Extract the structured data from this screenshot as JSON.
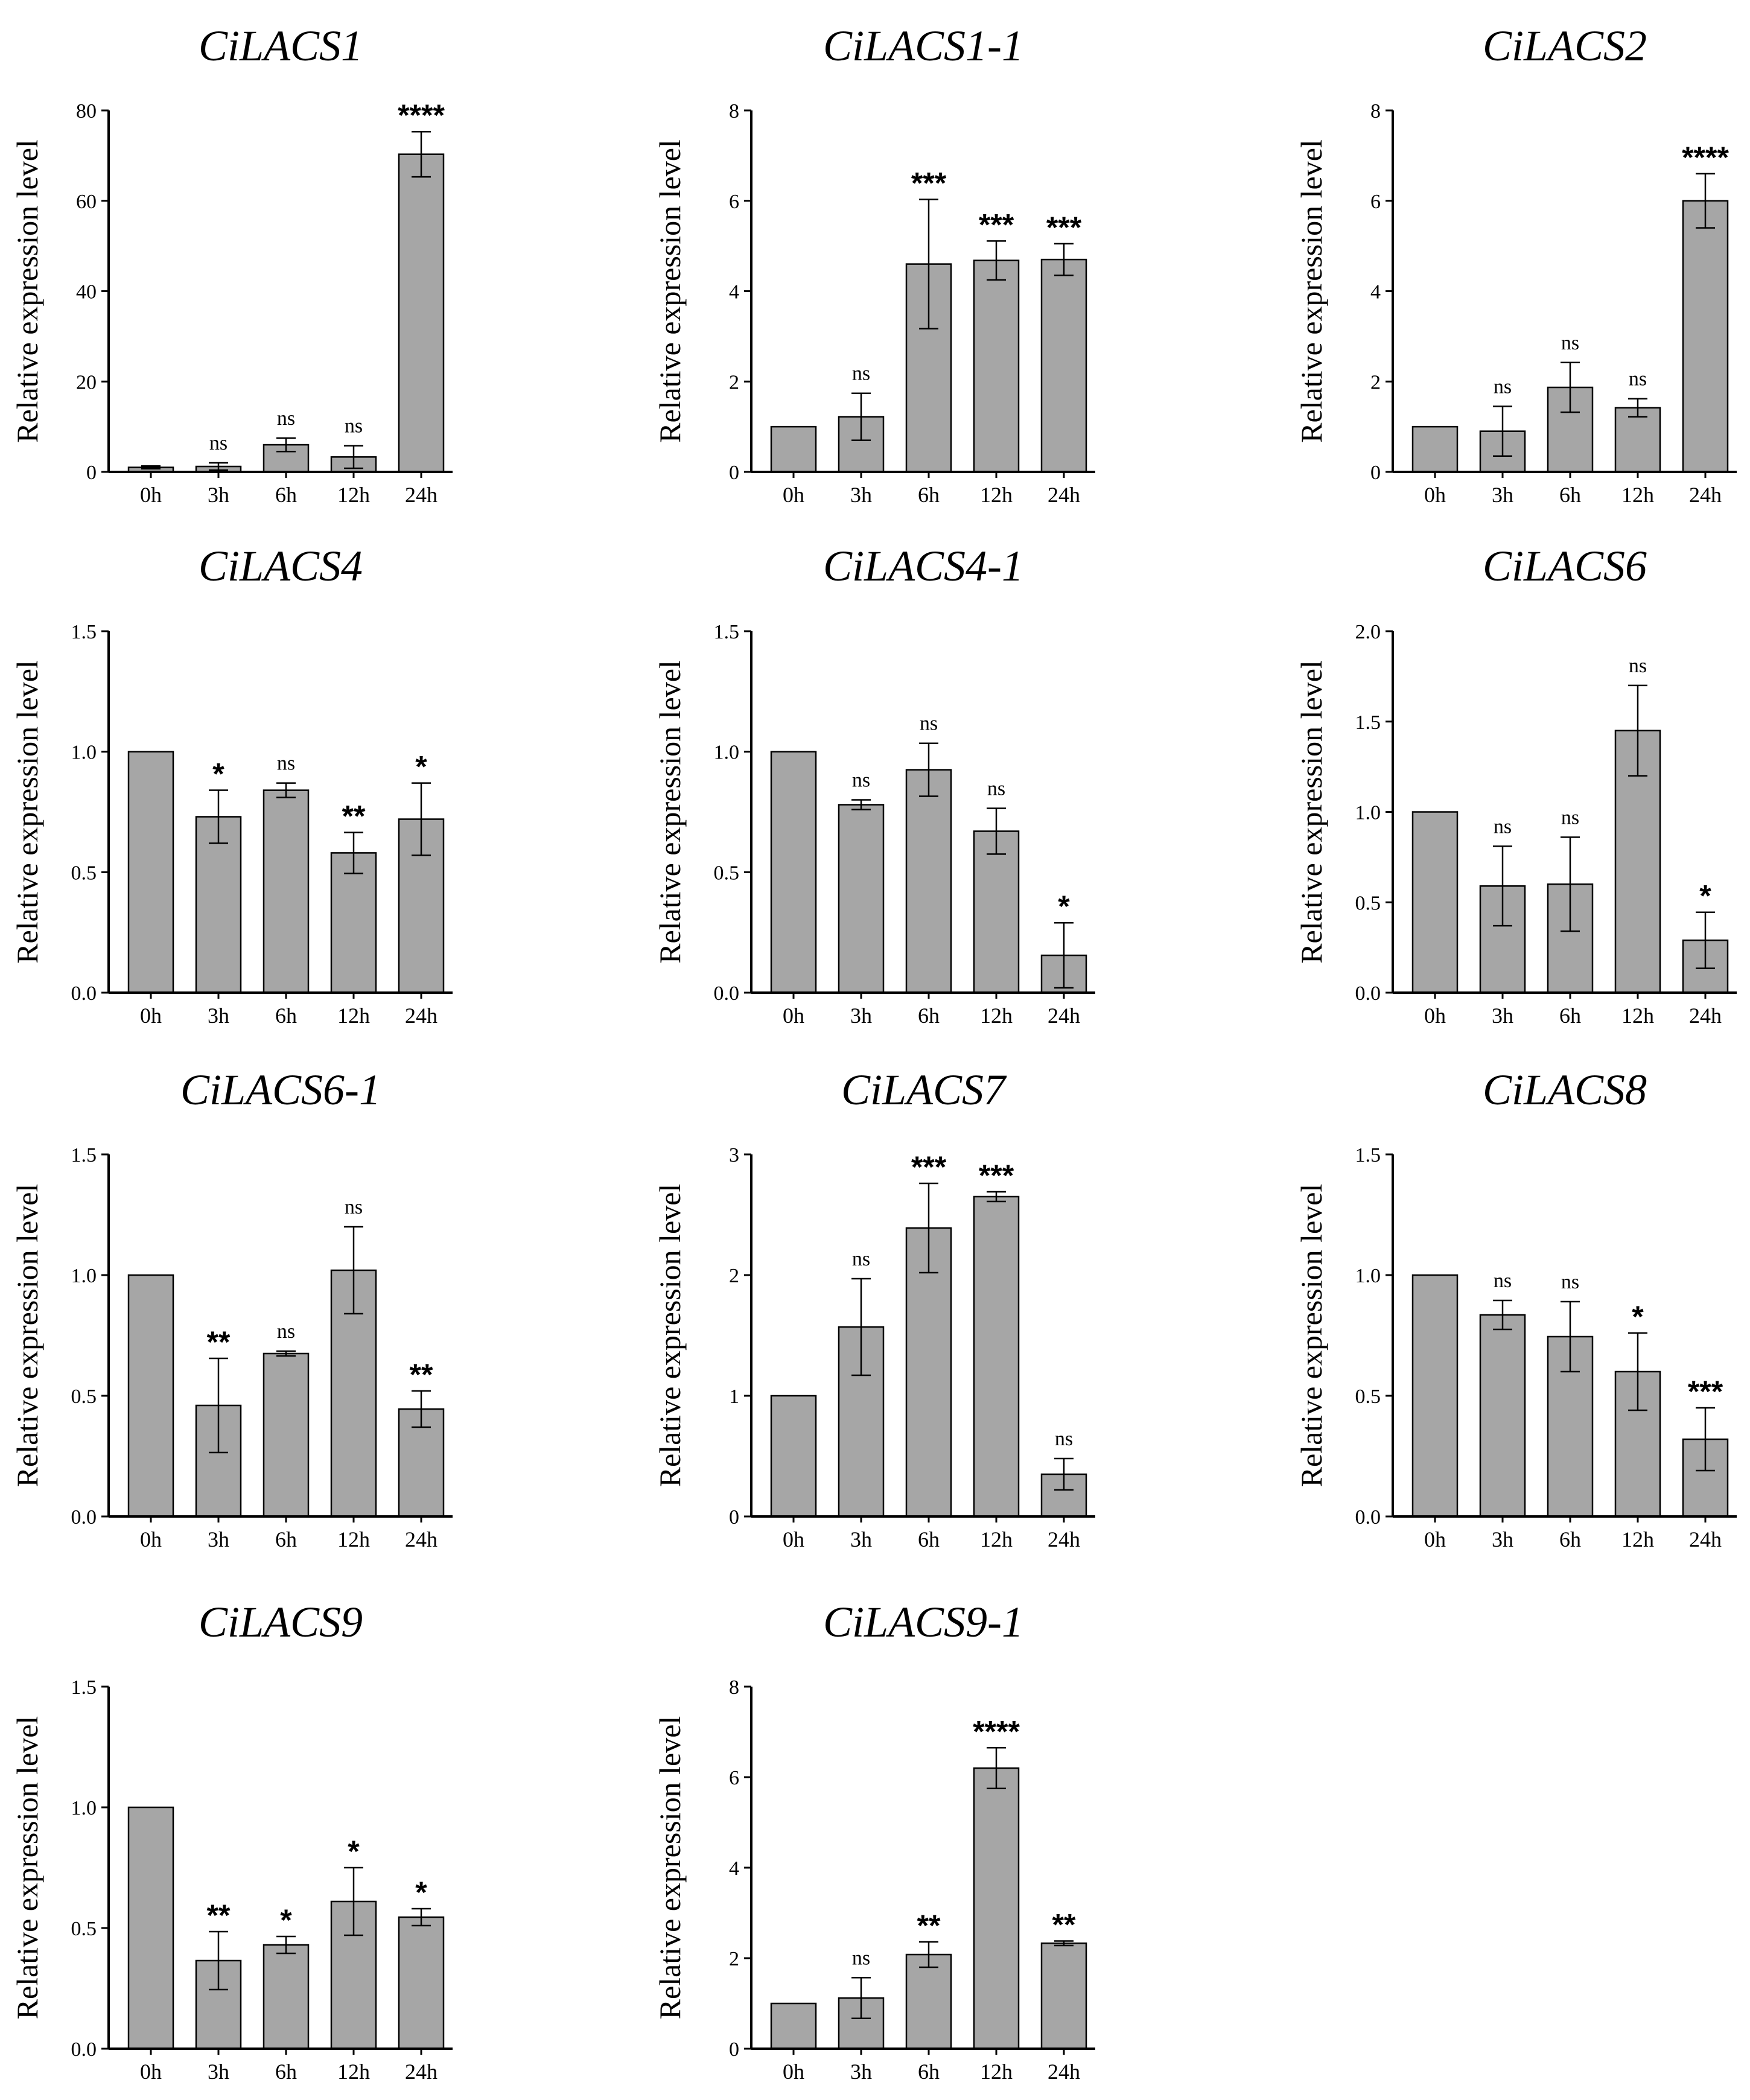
{
  "colors": {
    "bar_fill": "#a6a6a6",
    "stroke": "#000000",
    "background": "#ffffff"
  },
  "chart_data": [
    {
      "type": "bar",
      "title": "CiLACS1",
      "ylabel": "Relative expression level",
      "categories": [
        "0h",
        "3h",
        "6h",
        "12h",
        "24h"
      ],
      "ylim": [
        0,
        80
      ],
      "yticks": [
        "0",
        "20",
        "40",
        "60",
        "80"
      ],
      "values": [
        1.0,
        1.2,
        6.0,
        3.3,
        70.3
      ],
      "errors": [
        0.3,
        0.8,
        1.5,
        2.5,
        5.0
      ],
      "significance": [
        "",
        "ns",
        "ns",
        "ns",
        "****"
      ]
    },
    {
      "type": "bar",
      "title": "CiLACS1-1",
      "ylabel": "Relative expression level",
      "categories": [
        "0h",
        "3h",
        "6h",
        "12h",
        "24h"
      ],
      "ylim": [
        0,
        8
      ],
      "yticks": [
        "0",
        "2",
        "4",
        "6",
        "8"
      ],
      "values": [
        1.0,
        1.22,
        4.6,
        4.68,
        4.7
      ],
      "errors": [
        0,
        0.52,
        1.43,
        0.43,
        0.35
      ],
      "significance": [
        "",
        "ns",
        "***",
        "***",
        "***"
      ]
    },
    {
      "type": "bar",
      "title": "CiLACS2",
      "ylabel": "Relative expression level",
      "categories": [
        "0h",
        "3h",
        "6h",
        "12h",
        "24h"
      ],
      "ylim": [
        0,
        8
      ],
      "yticks": [
        "0",
        "2",
        "4",
        "6",
        "8"
      ],
      "values": [
        1.0,
        0.9,
        1.87,
        1.42,
        6.0
      ],
      "errors": [
        0,
        0.55,
        0.55,
        0.2,
        0.6
      ],
      "significance": [
        "",
        "ns",
        "ns",
        "ns",
        "****"
      ]
    },
    {
      "type": "bar",
      "title": "CiLACS4",
      "ylabel": "Relative expression level",
      "categories": [
        "0h",
        "3h",
        "6h",
        "12h",
        "24h"
      ],
      "ylim": [
        0,
        1.5
      ],
      "yticks": [
        "0.0",
        "0.5",
        "1.0",
        "1.5"
      ],
      "values": [
        1.0,
        0.73,
        0.84,
        0.58,
        0.72
      ],
      "errors": [
        0,
        0.11,
        0.03,
        0.085,
        0.15
      ],
      "significance": [
        "",
        "*",
        "ns",
        "**",
        "*"
      ]
    },
    {
      "type": "bar",
      "title": "CiLACS4-1",
      "ylabel": "Relative expression level",
      "categories": [
        "0h",
        "3h",
        "6h",
        "12h",
        "24h"
      ],
      "ylim": [
        0,
        1.5
      ],
      "yticks": [
        "0.0",
        "0.5",
        "1.0",
        "1.5"
      ],
      "values": [
        1.0,
        0.78,
        0.925,
        0.67,
        0.155
      ],
      "errors": [
        0,
        0.02,
        0.11,
        0.095,
        0.135
      ],
      "significance": [
        "",
        "ns",
        "ns",
        "ns",
        "*"
      ]
    },
    {
      "type": "bar",
      "title": "CiLACS6",
      "ylabel": "Relative expression level",
      "categories": [
        "0h",
        "3h",
        "6h",
        "12h",
        "24h"
      ],
      "ylim": [
        0,
        2.0
      ],
      "yticks": [
        "0.0",
        "0.5",
        "1.0",
        "1.5",
        "2.0"
      ],
      "values": [
        1.0,
        0.59,
        0.6,
        1.45,
        0.29
      ],
      "errors": [
        0,
        0.22,
        0.26,
        0.25,
        0.155
      ],
      "significance": [
        "",
        "ns",
        "ns",
        "ns",
        "*"
      ]
    },
    {
      "type": "bar",
      "title": "CiLACS6-1",
      "ylabel": "Relative expression level",
      "categories": [
        "0h",
        "3h",
        "6h",
        "12h",
        "24h"
      ],
      "ylim": [
        0,
        1.5
      ],
      "yticks": [
        "0.0",
        "0.5",
        "1.0",
        "1.5"
      ],
      "values": [
        1.0,
        0.46,
        0.675,
        1.02,
        0.445
      ],
      "errors": [
        0,
        0.195,
        0.01,
        0.18,
        0.075
      ],
      "significance": [
        "",
        "**",
        "ns",
        "ns",
        "**"
      ]
    },
    {
      "type": "bar",
      "title": "CiLACS7",
      "ylabel": "Relative expression level",
      "categories": [
        "0h",
        "3h",
        "6h",
        "12h",
        "24h"
      ],
      "ylim": [
        0,
        3
      ],
      "yticks": [
        "0",
        "1",
        "2",
        "3"
      ],
      "values": [
        1.0,
        1.57,
        2.39,
        2.65,
        0.35
      ],
      "errors": [
        0,
        0.4,
        0.37,
        0.04,
        0.13
      ],
      "significance": [
        "",
        "ns",
        "***",
        "***",
        "ns"
      ]
    },
    {
      "type": "bar",
      "title": "CiLACS8",
      "ylabel": "Relative expression level",
      "categories": [
        "0h",
        "3h",
        "6h",
        "12h",
        "24h"
      ],
      "ylim": [
        0,
        1.5
      ],
      "yticks": [
        "0.0",
        "0.5",
        "1.0",
        "1.5"
      ],
      "values": [
        1.0,
        0.835,
        0.745,
        0.6,
        0.32
      ],
      "errors": [
        0,
        0.06,
        0.145,
        0.16,
        0.13
      ],
      "significance": [
        "",
        "ns",
        "ns",
        "*",
        "***"
      ]
    },
    {
      "type": "bar",
      "title": "CiLACS9",
      "ylabel": "Relative expression level",
      "categories": [
        "0h",
        "3h",
        "6h",
        "12h",
        "24h"
      ],
      "ylim": [
        0,
        1.5
      ],
      "yticks": [
        "0.0",
        "0.5",
        "1.0",
        "1.5"
      ],
      "values": [
        1.0,
        0.365,
        0.43,
        0.61,
        0.545
      ],
      "errors": [
        0,
        0.12,
        0.035,
        0.14,
        0.035
      ],
      "significance": [
        "",
        "**",
        "*",
        "*",
        "*"
      ]
    },
    {
      "type": "bar",
      "title": "CiLACS9-1",
      "ylabel": "Relative expression level",
      "categories": [
        "0h",
        "3h",
        "6h",
        "12h",
        "24h"
      ],
      "ylim": [
        0,
        8
      ],
      "yticks": [
        "0",
        "2",
        "4",
        "6",
        "8"
      ],
      "values": [
        1.0,
        1.12,
        2.08,
        6.2,
        2.33
      ],
      "errors": [
        0,
        0.45,
        0.28,
        0.45,
        0.05
      ],
      "significance": [
        "",
        "ns",
        "**",
        "****",
        "**"
      ]
    }
  ]
}
